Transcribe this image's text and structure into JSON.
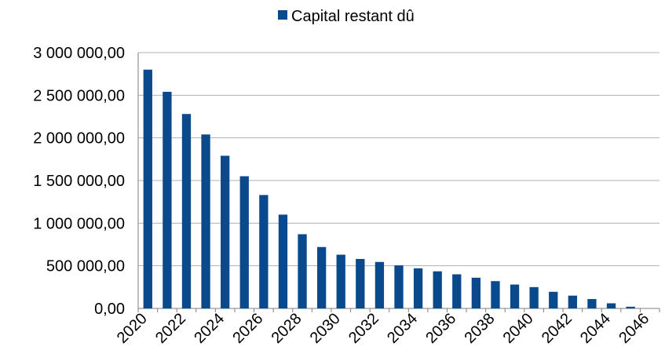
{
  "chart_data": {
    "type": "bar",
    "title": "",
    "xlabel": "",
    "ylabel": "",
    "ylim": [
      0,
      3000000
    ],
    "yticks": [
      {
        "value": 0,
        "label": "0,00"
      },
      {
        "value": 500000,
        "label": "500 000,00"
      },
      {
        "value": 1000000,
        "label": "1 000 000,00"
      },
      {
        "value": 1500000,
        "label": "1 500 000,00"
      },
      {
        "value": 2000000,
        "label": "2 000 000,00"
      },
      {
        "value": 2500000,
        "label": "2 500 000,00"
      },
      {
        "value": 3000000,
        "label": "3 000 000,00"
      }
    ],
    "grid": true,
    "legend_position": "top",
    "categories": [
      "2020",
      "2021",
      "2022",
      "2023",
      "2024",
      "2025",
      "2026",
      "2027",
      "2028",
      "2029",
      "2030",
      "2031",
      "2032",
      "2033",
      "2034",
      "2035",
      "2036",
      "2037",
      "2038",
      "2039",
      "2040",
      "2041",
      "2042",
      "2043",
      "2044",
      "2045",
      "2046"
    ],
    "x_tick_labels": [
      "2020",
      "",
      "2022",
      "",
      "2024",
      "",
      "2026",
      "",
      "2028",
      "",
      "2030",
      "",
      "2032",
      "",
      "2034",
      "",
      "2036",
      "",
      "2038",
      "",
      "2040",
      "",
      "2042",
      "",
      "2044",
      "",
      "2046"
    ],
    "series": [
      {
        "name": "Capital restant dû",
        "color": "#0a4a8c",
        "values": [
          2800000,
          2540000,
          2280000,
          2040000,
          1790000,
          1550000,
          1330000,
          1100000,
          870000,
          720000,
          630000,
          580000,
          545000,
          505000,
          470000,
          435000,
          400000,
          360000,
          320000,
          280000,
          250000,
          195000,
          150000,
          110000,
          60000,
          20000,
          0
        ]
      }
    ]
  }
}
